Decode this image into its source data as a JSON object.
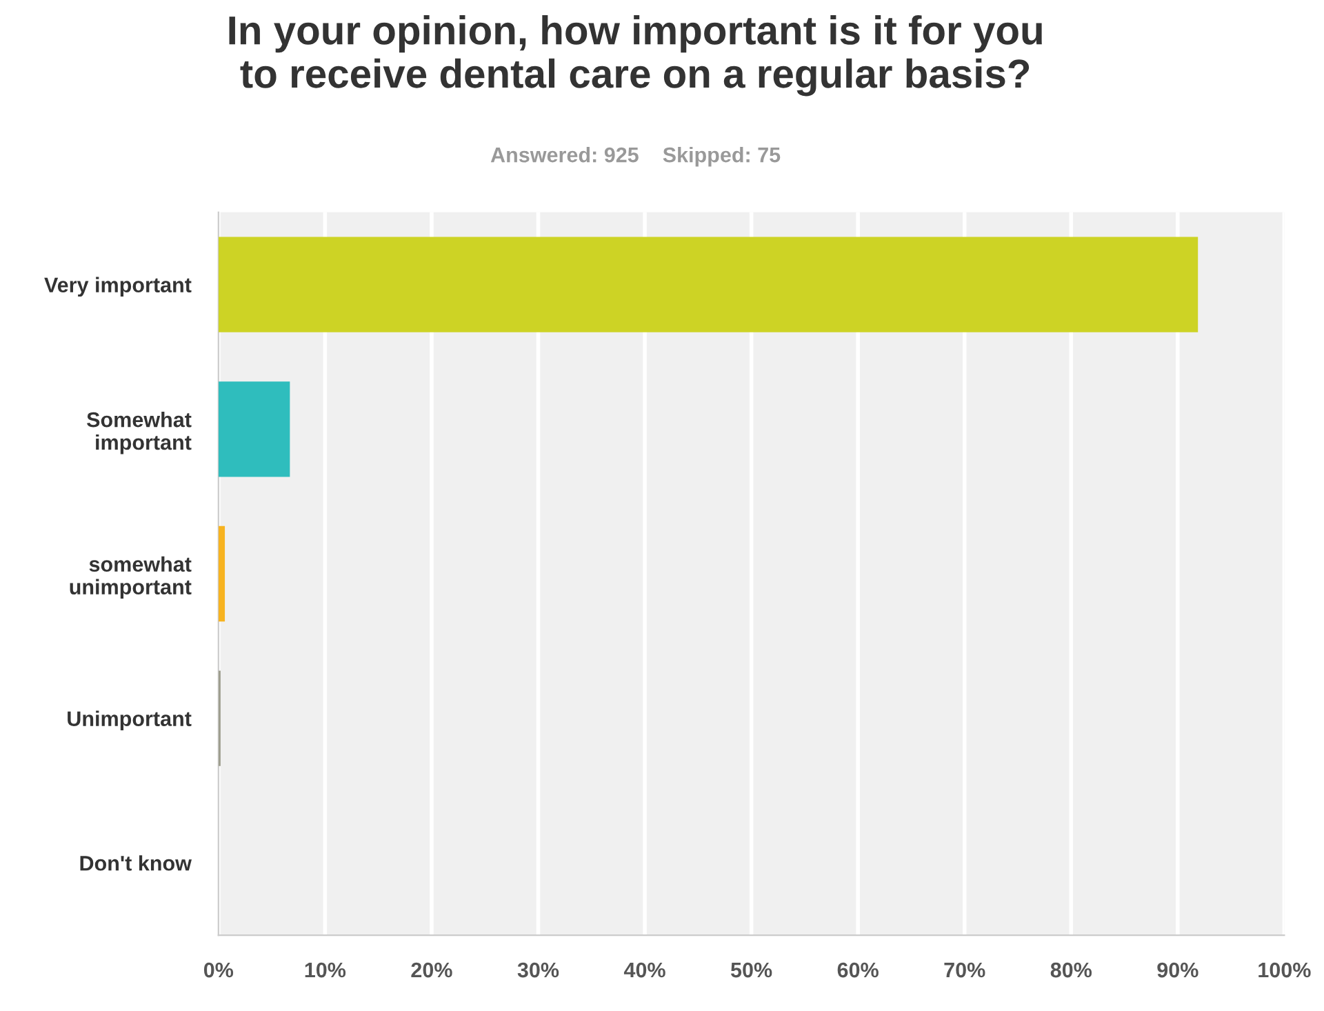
{
  "chart_data": {
    "type": "bar",
    "orientation": "horizontal",
    "title": "In your opinion, how important is it for you\nto receive dental care on a regular basis?",
    "subtitle": "Answered: 925    Skipped: 75",
    "categories": [
      "Very important",
      "Somewhat\nimportant",
      "somewhat\nunimportant",
      "Unimportant",
      "Don't know"
    ],
    "values": [
      91.9,
      6.7,
      0.6,
      0.2,
      0
    ],
    "colors": [
      "#cdd325",
      "#2fbdbd",
      "#f7b320",
      "#9e9e8e",
      "#888888"
    ],
    "xlim": [
      0,
      100
    ],
    "xticks": [
      {
        "value": 0,
        "label": "0%"
      },
      {
        "value": 10,
        "label": "10%"
      },
      {
        "value": 20,
        "label": "20%"
      },
      {
        "value": 30,
        "label": "30%"
      },
      {
        "value": 40,
        "label": "40%"
      },
      {
        "value": 50,
        "label": "50%"
      },
      {
        "value": 60,
        "label": "60%"
      },
      {
        "value": 70,
        "label": "70%"
      },
      {
        "value": 80,
        "label": "80%"
      },
      {
        "value": 90,
        "label": "90%"
      },
      {
        "value": 100,
        "label": "100%"
      }
    ],
    "grid": "x",
    "legend": false
  }
}
